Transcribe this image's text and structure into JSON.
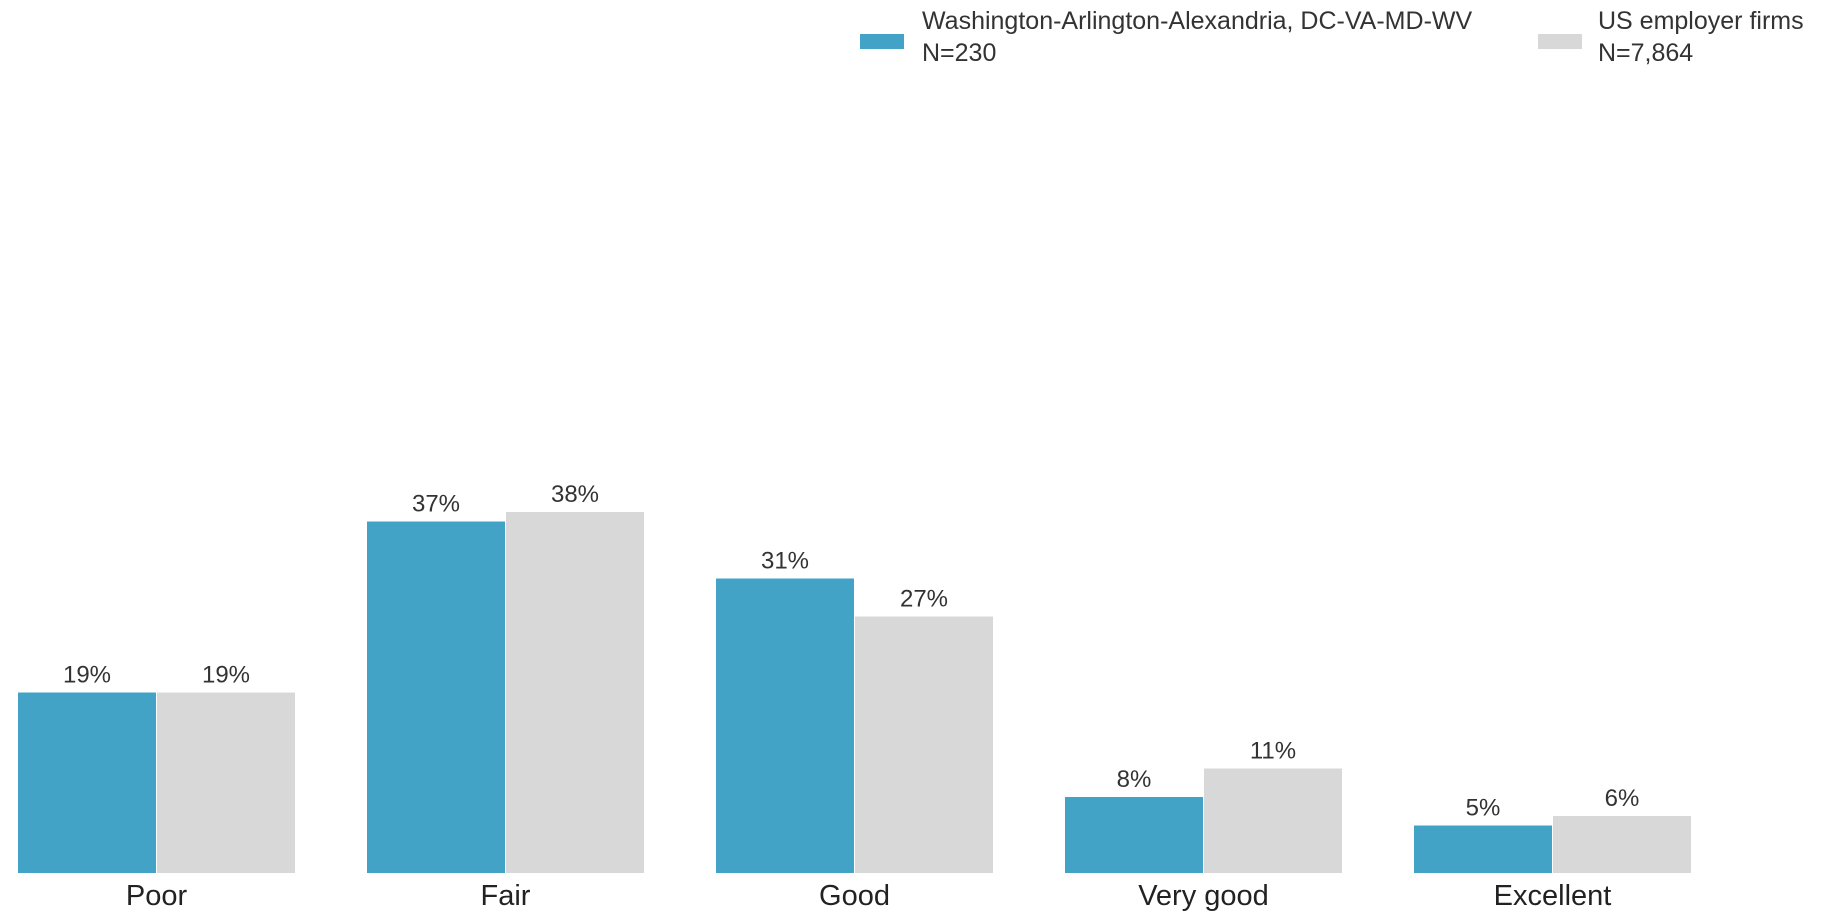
{
  "chart_data": {
    "type": "bar",
    "categories": [
      "Poor",
      "Fair",
      "Good",
      "Very good",
      "Excellent"
    ],
    "series": [
      {
        "name": "Washington-Arlington-Alexandria, DC-VA-MD-WV",
        "sample": "N=230",
        "color": "#43A3C6",
        "values": [
          19,
          37,
          31,
          8,
          5
        ],
        "labels": [
          "19%",
          "37%",
          "31%",
          "8%",
          "5%"
        ]
      },
      {
        "name": "US employer firms",
        "sample": "N=7,864",
        "color": "#D8D8D8",
        "values": [
          19,
          38,
          27,
          11,
          6
        ],
        "labels": [
          "19%",
          "38%",
          "27%",
          "11%",
          "6%"
        ]
      }
    ],
    "title": "",
    "xlabel": "",
    "ylabel": "",
    "ylim": [
      0,
      38
    ],
    "grid": false,
    "legend_position": "top-right"
  }
}
